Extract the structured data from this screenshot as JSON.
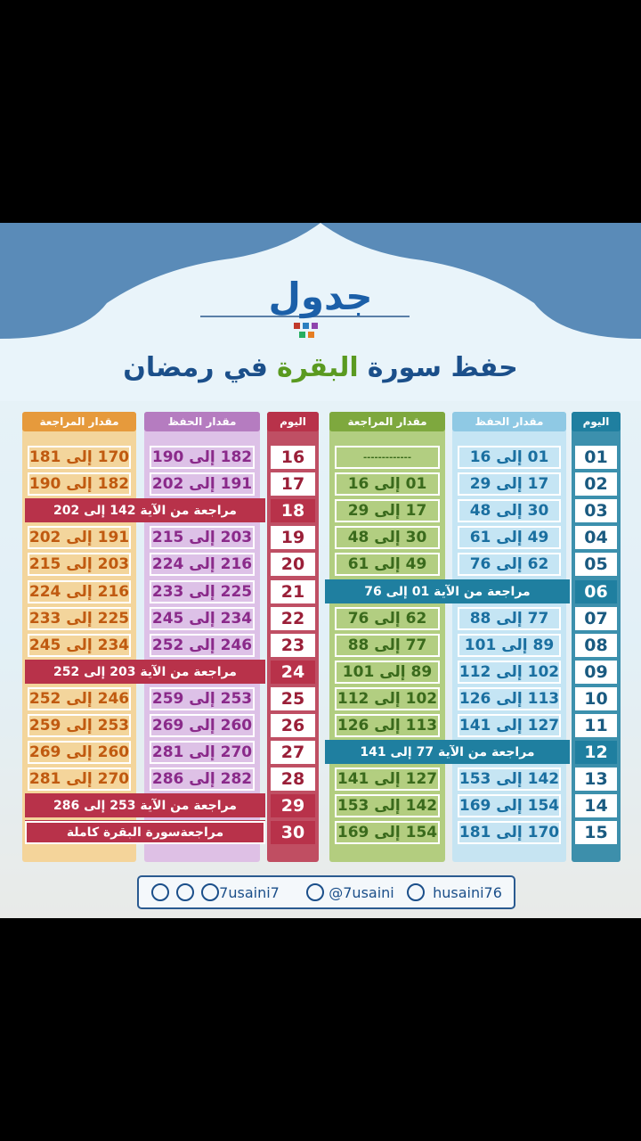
{
  "title": "جدول",
  "subtitle": [
    "حفظ سورة",
    "البقرة",
    "في رمضان"
  ],
  "right_table": {
    "headers": [
      "اليوم",
      "مقدار الحفظ",
      "مقدار المراجعة"
    ],
    "rows": [
      {
        "day": "01",
        "memorize": "01 إلى 16",
        "review": "-------------"
      },
      {
        "day": "02",
        "memorize": "17 إلى 29",
        "review": "01 إلى 16"
      },
      {
        "day": "03",
        "memorize": "30 إلى 48",
        "review": "17 إلى 29"
      },
      {
        "day": "04",
        "memorize": "49 إلى 61",
        "review": "30 إلى 48"
      },
      {
        "day": "05",
        "memorize": "62 إلى 76",
        "review": "49 إلى 61"
      },
      {
        "day": "06",
        "span": "مراجعة من الآية 01 إلى 76"
      },
      {
        "day": "07",
        "memorize": "77 إلى 88",
        "review": "62 إلى 76"
      },
      {
        "day": "08",
        "memorize": "89 إلى 101",
        "review": "77 إلى 88"
      },
      {
        "day": "09",
        "memorize": "102 إلى 112",
        "review": "89 إلى 101"
      },
      {
        "day": "10",
        "memorize": "113 إلى 126",
        "review": "102 إلى 112"
      },
      {
        "day": "11",
        "memorize": "127 إلى 141",
        "review": "113 إلى 126"
      },
      {
        "day": "12",
        "span": "مراجعة من الآية 77 إلى 141"
      },
      {
        "day": "13",
        "memorize": "142 إلى 153",
        "review": "127 إلى 141"
      },
      {
        "day": "14",
        "memorize": "154 إلى 169",
        "review": "142 إلى 153"
      },
      {
        "day": "15",
        "memorize": "170 إلى 181",
        "review": "154 إلى 169"
      }
    ]
  },
  "left_table": {
    "headers": [
      "اليوم",
      "مقدار الحفظ",
      "مقدار المراجعة"
    ],
    "rows": [
      {
        "day": "16",
        "memorize": "182 إلى 190",
        "review": "170 إلى 181"
      },
      {
        "day": "17",
        "memorize": "191 إلى 202",
        "review": "182 إلى 190"
      },
      {
        "day": "18",
        "span": "مراجعة من الآية 142 إلى 202"
      },
      {
        "day": "19",
        "memorize": "203 إلى 215",
        "review": "191 إلى 202"
      },
      {
        "day": "20",
        "memorize": "216 إلى 224",
        "review": "203 إلى 215"
      },
      {
        "day": "21",
        "memorize": "225 إلى 233",
        "review": "216 إلى 224"
      },
      {
        "day": "22",
        "memorize": "234 إلى 245",
        "review": "225 إلى 233"
      },
      {
        "day": "23",
        "memorize": "246 إلى 252",
        "review": "234 إلى 245"
      },
      {
        "day": "24",
        "span": "مراجعة من الآية 203 إلى 252"
      },
      {
        "day": "25",
        "memorize": "253 إلى 259",
        "review": "246 إلى 252"
      },
      {
        "day": "26",
        "memorize": "260 إلى 269",
        "review": "253 إلى 259"
      },
      {
        "day": "27",
        "memorize": "270 إلى 281",
        "review": "260 إلى 269"
      },
      {
        "day": "28",
        "memorize": "282 إلى 286",
        "review": "270 إلى 281"
      },
      {
        "day": "29",
        "span": "مراجعة من الآية 253 إلى 286"
      },
      {
        "day": "30",
        "span": "مراجعةسورة البقرة كاملة"
      }
    ]
  },
  "footer": [
    "7usaini7",
    "@7usaini",
    "husaini76"
  ]
}
